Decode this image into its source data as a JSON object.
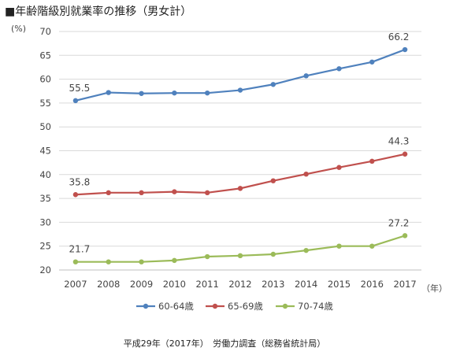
{
  "title": "■年齢階級別就業率の推移（男女計）",
  "y_unit": "(%)",
  "x_unit": "（年）",
  "source": "平成29年（2017年）　労働力調査（総務省統計局）",
  "chart_data": {
    "type": "line",
    "title": "年齢階級別就業率の推移（男女計）",
    "xlabel": "（年）",
    "ylabel": "(%)",
    "x": [
      "2007",
      "2008",
      "2009",
      "2010",
      "2011",
      "2012",
      "2013",
      "2014",
      "2015",
      "2016",
      "2017"
    ],
    "ylim": [
      20,
      70
    ],
    "yticks": [
      20,
      25,
      30,
      35,
      40,
      45,
      50,
      55,
      60,
      65,
      70
    ],
    "grid": true,
    "legend_position": "bottom",
    "series": [
      {
        "name": "60-64歳",
        "color": "#4f81bd",
        "values": [
          55.5,
          57.2,
          57.0,
          57.1,
          57.1,
          57.7,
          58.9,
          60.7,
          62.2,
          63.6,
          66.2
        ],
        "labels": {
          "0": "55.5",
          "10": "66.2"
        }
      },
      {
        "name": "65-69歳",
        "color": "#c0504d",
        "values": [
          35.8,
          36.2,
          36.2,
          36.4,
          36.2,
          37.1,
          38.7,
          40.1,
          41.5,
          42.8,
          44.3
        ],
        "labels": {
          "0": "35.8",
          "10": "44.3"
        }
      },
      {
        "name": "70-74歳",
        "color": "#9bbb59",
        "values": [
          21.7,
          21.7,
          21.7,
          22.0,
          22.8,
          23.0,
          23.3,
          24.1,
          25.0,
          25.0,
          27.2
        ],
        "labels": {
          "0": "21.7",
          "10": "27.2"
        }
      }
    ]
  }
}
